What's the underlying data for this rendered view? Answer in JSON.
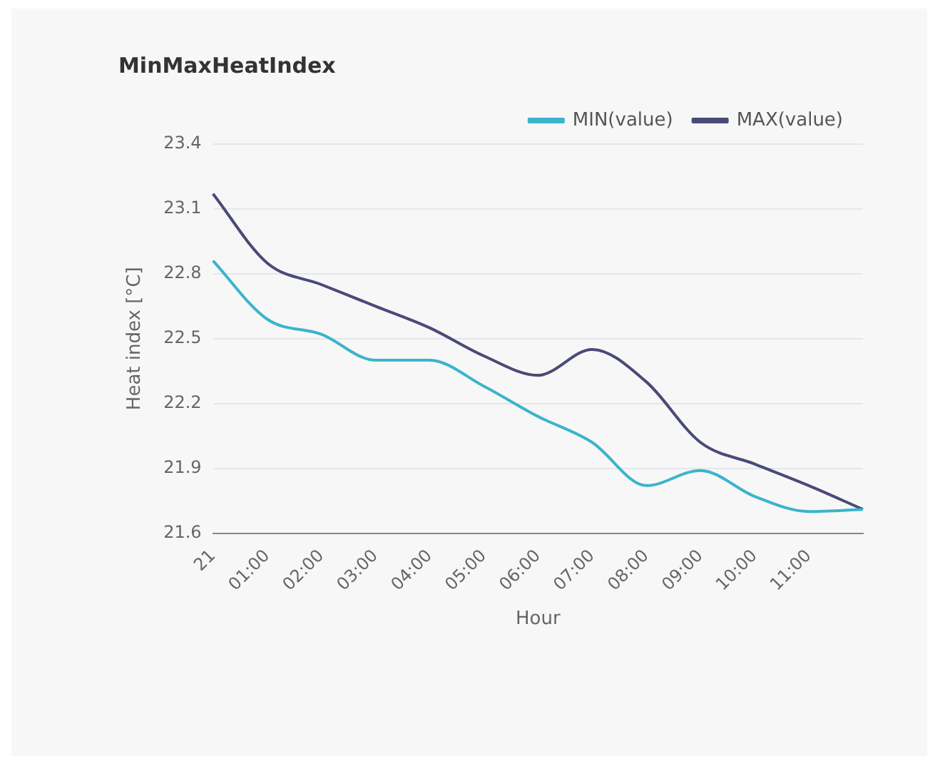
{
  "chart_data": {
    "type": "line",
    "title": "MinMaxHeatIndex",
    "xlabel": "Hour",
    "ylabel": "Heat index [°C]",
    "categories": [
      "21",
      "01:00",
      "02:00",
      "03:00",
      "04:00",
      "05:00",
      "06:00",
      "07:00",
      "08:00",
      "09:00",
      "10:00",
      "11:00",
      null
    ],
    "ylim": [
      21.6,
      23.4
    ],
    "yticks": [
      21.6,
      21.9,
      22.2,
      22.5,
      22.8,
      23.1,
      23.4
    ],
    "grid": "y",
    "legend": "top right",
    "marker": "none",
    "line_style": "solid",
    "series": [
      {
        "name": "MIN(value)",
        "color": "#3bb4cc",
        "values": [
          22.86,
          22.59,
          22.52,
          22.4,
          22.4,
          22.28,
          22.14,
          22.02,
          21.82,
          21.89,
          21.77,
          21.7,
          21.71
        ]
      },
      {
        "name": "MAX(value)",
        "color": "#4a4a78",
        "values": [
          23.17,
          22.85,
          22.75,
          22.65,
          22.55,
          22.42,
          22.33,
          22.45,
          22.3,
          22.02,
          21.92,
          21.82,
          21.71
        ]
      }
    ]
  }
}
